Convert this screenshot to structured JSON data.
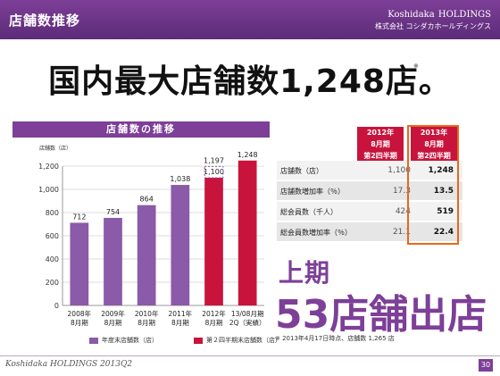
{
  "header": {
    "title": "店舗数推移",
    "brand_main": "Koshidaka",
    "brand_sub": "HOLDINGS",
    "brand_company": "株式会社 コシダカホールディングス"
  },
  "headline": "国内最大店舗数1,248店。",
  "headline_mark": "※",
  "chart_header": "店舗数の推移",
  "chart_data": {
    "type": "bar",
    "title": "店舗数の推移",
    "ylabel": "店舗数（店）",
    "ylim": [
      0,
      1200
    ],
    "yticks": [
      "0",
      "200",
      "400",
      "600",
      "800",
      "1,000",
      "1,200"
    ],
    "categories": [
      [
        "2008年",
        "8月期"
      ],
      [
        "2009年",
        "8月期"
      ],
      [
        "2010年",
        "8月期"
      ],
      [
        "2011年",
        "8月期"
      ],
      [
        "2012年",
        "8月期"
      ],
      [
        "13/08月期",
        "2Q（実績）"
      ]
    ],
    "series": [
      {
        "name": "年度末店舗数（店）",
        "color": "#8b5aa8",
        "values": [
          712,
          754,
          864,
          1038,
          null,
          null
        ],
        "labels": [
          "712",
          "754",
          "864",
          "1,038",
          "",
          ""
        ]
      },
      {
        "name": "第２四半期末店舗数（店）",
        "color": "#c8143c",
        "values": [
          null,
          null,
          null,
          null,
          1100,
          1248
        ],
        "labels": [
          "",
          "",
          "",
          "",
          "1,100",
          "1,248"
        ]
      }
    ],
    "extra_label": {
      "category_index": 4,
      "value": 1197,
      "text": "1,197"
    }
  },
  "legend": [
    {
      "label": "年度末店舗数（店）",
      "color": "#8b5aa8"
    },
    {
      "label": "第２四半期末店舗数（店）",
      "color": "#c8143c"
    }
  ],
  "table": {
    "headers": [
      [
        "2012年",
        "8月期",
        "第2四半期"
      ],
      [
        "2013年",
        "8月期",
        "第2四半期"
      ]
    ],
    "rows": [
      {
        "label": "店舗数（店）",
        "v2012": "1,100",
        "v2013": "1,248"
      },
      {
        "label": "店舗数増加率（％）",
        "v2012": "17.3",
        "v2013": "13.5"
      },
      {
        "label": "総会員数（千人）",
        "v2012": "424",
        "v2013": "519"
      },
      {
        "label": "総会員数増加率（％）",
        "v2012": "21.1",
        "v2013": "22.4"
      }
    ]
  },
  "highlight": {
    "period": "上期",
    "text": "53店舗出店"
  },
  "note": "※ 2013年4月17日時点、店舗数 1,265 店",
  "footer": {
    "left": "Koshidaka HOLDINGS 2013Q2",
    "page": "30"
  }
}
